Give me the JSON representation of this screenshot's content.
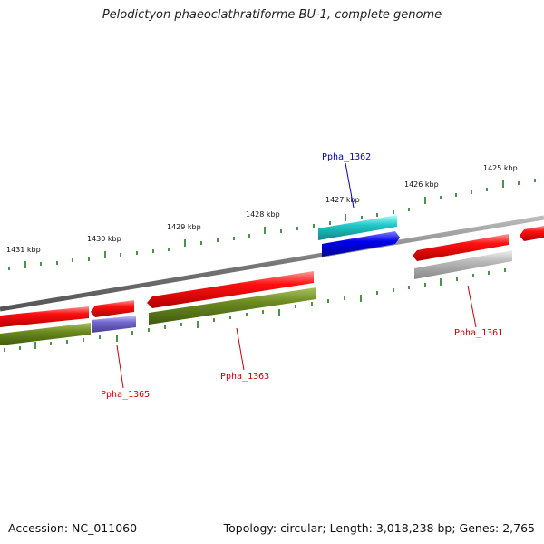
{
  "title": "Pelodictyon phaeoclathratiforme BU-1, complete genome",
  "footer": {
    "accession": "Accession: NC_011060",
    "summary": "Topology: circular; Length: 3,018,238 bp; Genes: 2,765"
  },
  "scale_labels": [
    "1425 kbp",
    "1426 kbp",
    "1427 kbp",
    "1428 kbp",
    "1429 kbp",
    "1430 kbp",
    "1431 kbp"
  ],
  "gene_labels": {
    "ppha_1362": "Ppha_1362",
    "ppha_1361": "Ppha_1361",
    "ppha_1363": "Ppha_1363",
    "ppha_1365": "Ppha_1365"
  },
  "colors": {
    "cds_forward": "#ee0000",
    "cds_reverse": "#6b8a1f",
    "rna_cyan": "#20c8c8",
    "highlight_blue": "#0000ee",
    "pseudo_purple": "#7066cc",
    "grey_feature": "#b8b8b8",
    "backbone": "#808080",
    "tick_green": "#1f7a1f",
    "label_red": "#cc0000",
    "label_blue": "#0000cc"
  }
}
